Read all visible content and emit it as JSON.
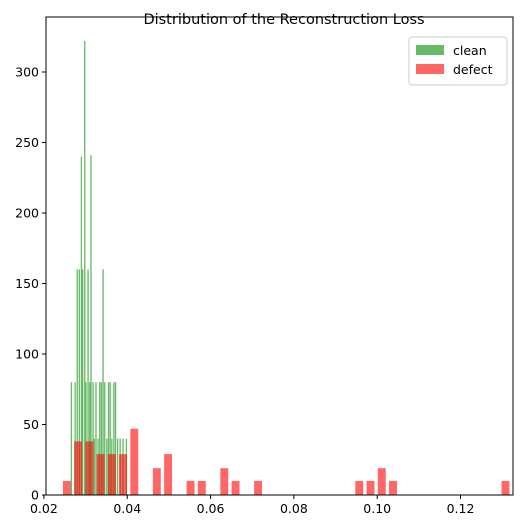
{
  "chart_data": {
    "type": "bar",
    "title": "Distribution of the Reconstruction Loss",
    "xlabel": "",
    "ylabel": "",
    "xlim": [
      0.0205,
      0.1326
    ],
    "ylim": [
      0,
      339
    ],
    "xticks": [
      0.02,
      0.04,
      0.06,
      0.08,
      0.1,
      0.12
    ],
    "xtick_labels": [
      "0.02",
      "0.04",
      "0.06",
      "0.08",
      "0.10",
      "0.12"
    ],
    "yticks": [
      0,
      50,
      100,
      150,
      200,
      250,
      300
    ],
    "ytick_labels": [
      "0",
      "50",
      "100",
      "150",
      "200",
      "250",
      "300"
    ],
    "grid": false,
    "legend_position": "top-right",
    "series": [
      {
        "name": "clean",
        "color": "#2ca02c",
        "opacity": 0.72,
        "bin_width": 0.00032,
        "x": [
          0.0266,
          0.0275,
          0.028,
          0.0285,
          0.029,
          0.0293,
          0.0298,
          0.0301,
          0.0306,
          0.031,
          0.0313,
          0.0318,
          0.0321,
          0.0325,
          0.033,
          0.0334,
          0.0338,
          0.0342,
          0.0346,
          0.0351,
          0.0355,
          0.0359,
          0.0363,
          0.0368,
          0.0372,
          0.0377,
          0.0383,
          0.039,
          0.0398
        ],
        "values": [
          80,
          80,
          160,
          160,
          240,
          160,
          322,
          80,
          160,
          80,
          241,
          80,
          40,
          80,
          40,
          80,
          80,
          160,
          80,
          40,
          80,
          80,
          40,
          80,
          80,
          40,
          40,
          40,
          40
        ]
      },
      {
        "name": "defect",
        "color": "#ff0000",
        "opacity": 0.6,
        "bin_width": 0.0019,
        "x": [
          0.0255,
          0.0282,
          0.0309,
          0.0336,
          0.0363,
          0.039,
          0.0417,
          0.0471,
          0.0498,
          0.0552,
          0.0579,
          0.0633,
          0.066,
          0.0714,
          0.0957,
          0.0984,
          0.1011,
          0.1038,
          0.1308
        ],
        "values": [
          10,
          38,
          38,
          29,
          29,
          29,
          47,
          19,
          29,
          10,
          10,
          19,
          10,
          10,
          10,
          10,
          19,
          10,
          10
        ]
      }
    ]
  }
}
